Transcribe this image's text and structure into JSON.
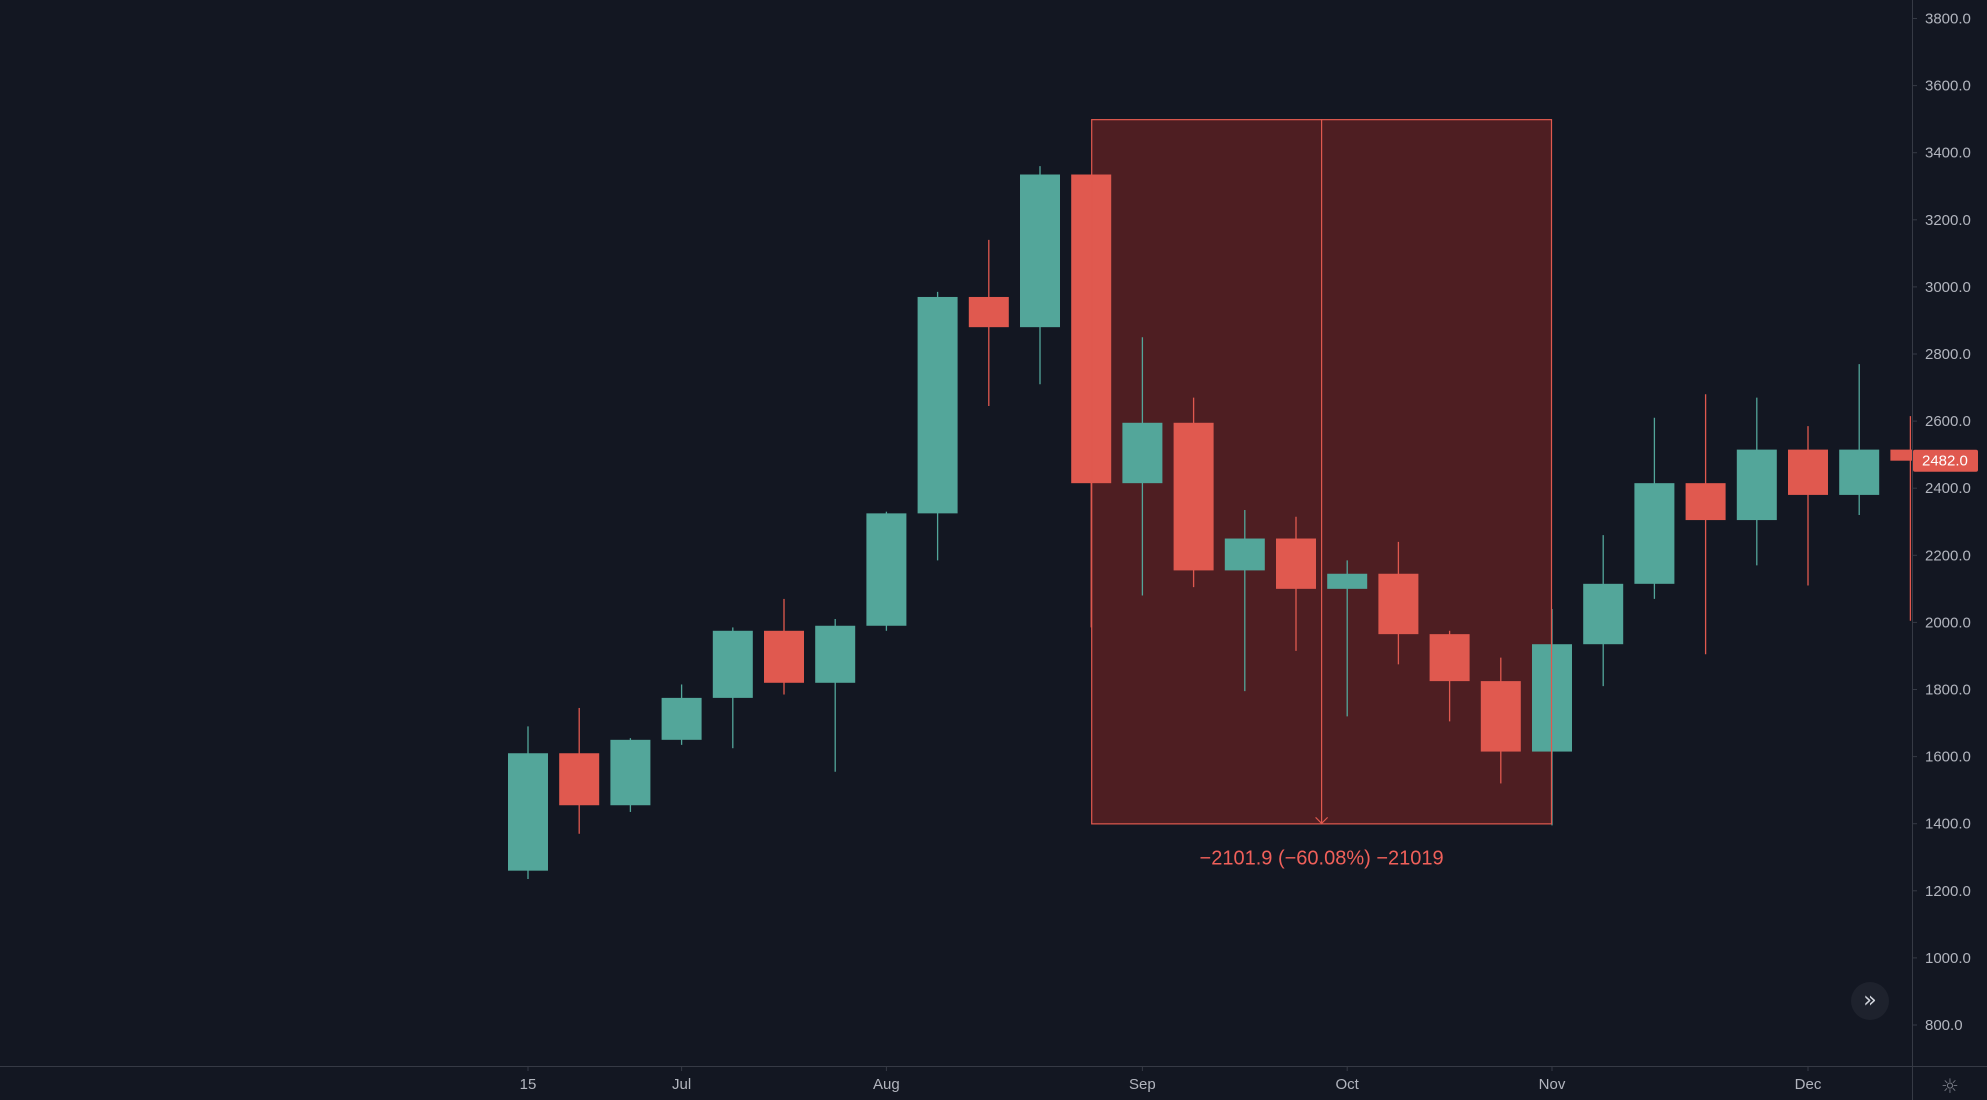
{
  "chart_data": {
    "type": "candlestick",
    "x_ticks": [
      "15",
      "Jul",
      "Aug",
      "Sep",
      "Oct",
      "Nov",
      "Dec"
    ],
    "y_ticks": [
      "800.0",
      "1000.0",
      "1200.0",
      "1400.0",
      "1600.0",
      "1800.0",
      "2000.0",
      "2200.0",
      "2400.0",
      "2600.0",
      "2800.0",
      "3000.0",
      "3200.0",
      "3400.0",
      "3600.0",
      "3800.0"
    ],
    "ylim": [
      720,
      3860
    ],
    "candles": [
      {
        "open": 1260,
        "high": 1690,
        "low": 1235,
        "close": 1610
      },
      {
        "open": 1610,
        "high": 1745,
        "low": 1370,
        "close": 1455
      },
      {
        "open": 1455,
        "high": 1655,
        "low": 1435,
        "close": 1650
      },
      {
        "open": 1650,
        "high": 1815,
        "low": 1635,
        "close": 1775
      },
      {
        "open": 1775,
        "high": 1985,
        "low": 1625,
        "close": 1975
      },
      {
        "open": 1975,
        "high": 2070,
        "low": 1785,
        "close": 1820
      },
      {
        "open": 1820,
        "high": 2010,
        "low": 1555,
        "close": 1990
      },
      {
        "open": 1990,
        "high": 2330,
        "low": 1975,
        "close": 2325
      },
      {
        "open": 2325,
        "high": 2985,
        "low": 2185,
        "close": 2970
      },
      {
        "open": 2970,
        "high": 3140,
        "low": 2645,
        "close": 2880
      },
      {
        "open": 2880,
        "high": 3360,
        "low": 2710,
        "close": 3335
      },
      {
        "open": 3335,
        "high": 3335,
        "low": 1985,
        "close": 2415
      },
      {
        "open": 2415,
        "high": 2850,
        "low": 2080,
        "close": 2595
      },
      {
        "open": 2595,
        "high": 2670,
        "low": 2105,
        "close": 2155
      },
      {
        "open": 2155,
        "high": 2335,
        "low": 1795,
        "close": 2250
      },
      {
        "open": 2250,
        "high": 2315,
        "low": 1915,
        "close": 2100
      },
      {
        "open": 2100,
        "high": 2185,
        "low": 1720,
        "close": 2145
      },
      {
        "open": 2145,
        "high": 2240,
        "low": 1875,
        "close": 1965
      },
      {
        "open": 1965,
        "high": 1975,
        "low": 1705,
        "close": 1825
      },
      {
        "open": 1825,
        "high": 1895,
        "low": 1520,
        "close": 1615
      },
      {
        "open": 1615,
        "high": 2040,
        "low": 1395,
        "close": 1935
      },
      {
        "open": 1935,
        "high": 2260,
        "low": 1810,
        "close": 2115
      },
      {
        "open": 2115,
        "high": 2610,
        "low": 2070,
        "close": 2415
      },
      {
        "open": 2415,
        "high": 2680,
        "low": 1905,
        "close": 2305
      },
      {
        "open": 2305,
        "high": 2670,
        "low": 2170,
        "close": 2515
      },
      {
        "open": 2515,
        "high": 2585,
        "low": 2110,
        "close": 2380
      },
      {
        "open": 2380,
        "high": 2770,
        "low": 2320,
        "close": 2515
      },
      {
        "open": 2515,
        "high": 2615,
        "low": 2005,
        "close": 2482
      }
    ],
    "last_price": "2482.0",
    "measurement": {
      "label": "−2101.9 (−60.08%) −21019",
      "price_from": 3500,
      "price_to": 1398,
      "start_candle": 11,
      "end_candle": 20
    },
    "colors": {
      "background": "#131722",
      "up": "#53a69a",
      "down": "#e0594f",
      "axis_text": "#b2b5be",
      "axis_line": "#363a45",
      "measure_fill": "#4e1e22",
      "measure_line": "#e0594f",
      "measure_text": "#f0605a"
    }
  },
  "controls": {
    "scroll_icon": "double-chevron-right-icon",
    "settings_icon": "gear-icon"
  }
}
